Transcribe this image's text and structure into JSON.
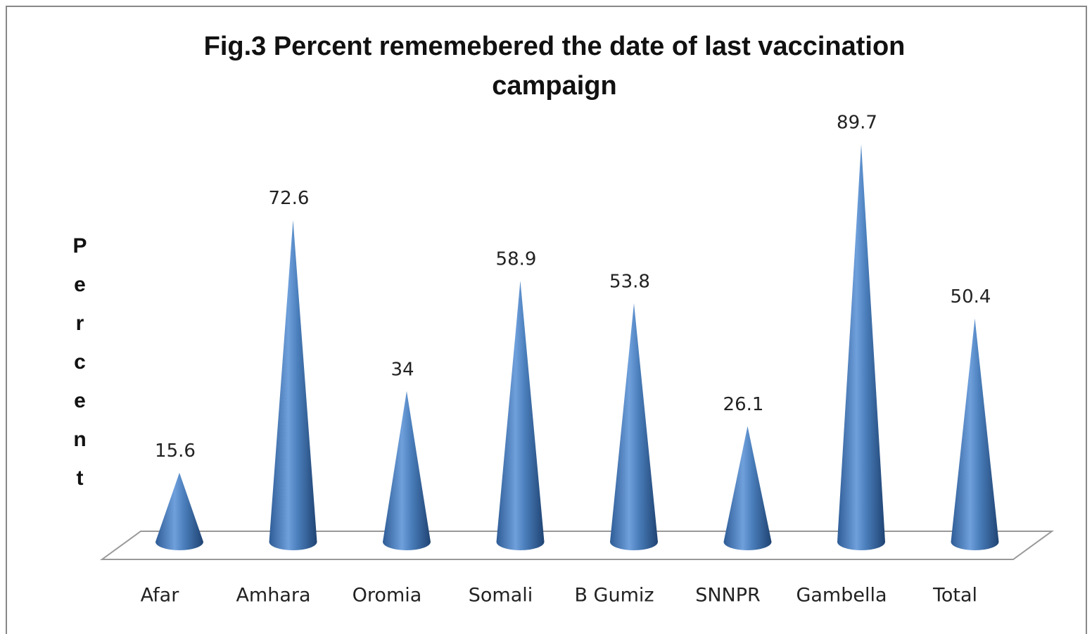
{
  "chart_data": {
    "type": "cone",
    "title": "Fig.3 Percent rememebered the date of last vaccination campaign",
    "y_label": "Percent",
    "categories": [
      "Afar",
      "Amhara",
      "Oromia",
      "Somali",
      "B Gumiz",
      "SNNPR",
      "Gambella",
      "Total"
    ],
    "values": [
      15.6,
      72.6,
      34,
      58.9,
      53.8,
      26.1,
      89.7,
      50.4
    ],
    "color": "#4a7ebb"
  }
}
